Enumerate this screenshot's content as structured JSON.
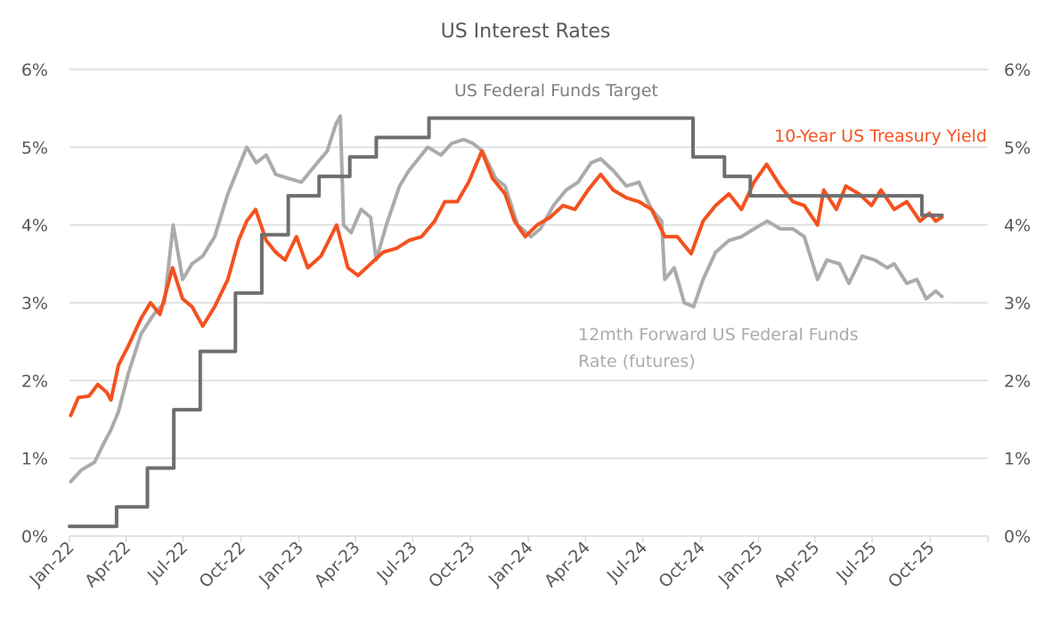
{
  "chart_data": {
    "type": "line",
    "title": "US Interest Rates",
    "xlim": [
      "2022-01-01",
      "2026-01-01"
    ],
    "ylim": [
      0,
      6
    ],
    "y_ticks": [
      "0%",
      "1%",
      "2%",
      "3%",
      "4%",
      "5%",
      "6%"
    ],
    "y_axes": "left-and-right",
    "grid": "horizontal",
    "x_tick_labels": [
      "Jan-22",
      "Apr-22",
      "Jul-22",
      "Oct-22",
      "Jan-23",
      "Apr-23",
      "Jul-23",
      "Oct-23",
      "Jan-24",
      "Apr-24",
      "Jul-24",
      "Oct-24",
      "Jan-25",
      "Apr-25",
      "Jul-25",
      "Oct-25"
    ],
    "x_tick_dates": [
      "2022-01-01",
      "2022-04-01",
      "2022-07-01",
      "2022-10-01",
      "2023-01-01",
      "2023-04-01",
      "2023-07-01",
      "2023-10-01",
      "2024-01-01",
      "2024-04-01",
      "2024-07-01",
      "2024-10-01",
      "2025-01-01",
      "2025-04-01",
      "2025-07-01",
      "2025-10-01"
    ],
    "series": [
      {
        "name": "12mth Forward US Federal Funds Rate (futures)",
        "color": "#ABABAB",
        "step": false,
        "x": [
          "2022-01-03",
          "2022-01-20",
          "2022-02-10",
          "2022-02-25",
          "2022-03-07",
          "2022-03-20",
          "2022-04-05",
          "2022-04-25",
          "2022-05-15",
          "2022-06-01",
          "2022-06-15",
          "2022-06-30",
          "2022-07-15",
          "2022-08-01",
          "2022-08-20",
          "2022-09-10",
          "2022-09-25",
          "2022-10-10",
          "2022-10-25",
          "2022-11-10",
          "2022-11-25",
          "2022-12-15",
          "2023-01-05",
          "2023-01-25",
          "2023-02-15",
          "2023-03-01",
          "2023-03-08",
          "2023-03-13",
          "2023-03-25",
          "2023-04-10",
          "2023-04-25",
          "2023-05-04",
          "2023-05-20",
          "2023-06-10",
          "2023-06-25",
          "2023-07-10",
          "2023-07-25",
          "2023-08-15",
          "2023-09-01",
          "2023-09-20",
          "2023-10-05",
          "2023-10-20",
          "2023-11-10",
          "2023-11-25",
          "2023-12-15",
          "2024-01-05",
          "2024-01-20",
          "2024-02-10",
          "2024-03-01",
          "2024-03-20",
          "2024-04-10",
          "2024-04-25",
          "2024-05-15",
          "2024-06-05",
          "2024-06-25",
          "2024-07-15",
          "2024-07-31",
          "2024-08-05",
          "2024-08-20",
          "2024-09-05",
          "2024-09-20",
          "2024-10-05",
          "2024-10-25",
          "2024-11-15",
          "2024-12-05",
          "2024-12-25",
          "2025-01-15",
          "2025-02-05",
          "2025-02-25",
          "2025-03-15",
          "2025-04-05",
          "2025-04-20",
          "2025-05-10",
          "2025-05-25",
          "2025-06-15",
          "2025-07-05",
          "2025-07-25",
          "2025-08-05",
          "2025-08-25",
          "2025-09-10",
          "2025-09-25",
          "2025-10-10",
          "2025-10-20"
        ],
        "values": [
          0.7,
          0.85,
          0.95,
          1.2,
          1.35,
          1.6,
          2.1,
          2.6,
          2.85,
          3.0,
          4.0,
          3.3,
          3.5,
          3.6,
          3.85,
          4.4,
          4.7,
          5.0,
          4.8,
          4.9,
          4.65,
          4.6,
          4.55,
          4.75,
          4.95,
          5.3,
          5.4,
          4.0,
          3.9,
          4.2,
          4.1,
          3.55,
          4.0,
          4.5,
          4.7,
          4.85,
          5.0,
          4.9,
          5.05,
          5.1,
          5.05,
          4.95,
          4.6,
          4.5,
          4.0,
          3.85,
          3.95,
          4.25,
          4.45,
          4.55,
          4.8,
          4.85,
          4.7,
          4.5,
          4.55,
          4.2,
          4.05,
          3.3,
          3.45,
          3.0,
          2.95,
          3.3,
          3.65,
          3.8,
          3.85,
          3.95,
          4.05,
          3.95,
          3.95,
          3.85,
          3.3,
          3.55,
          3.5,
          3.25,
          3.6,
          3.55,
          3.45,
          3.5,
          3.25,
          3.3,
          3.05,
          3.15,
          3.08
        ]
      },
      {
        "name": "10-Year US Treasury Yield",
        "color": "#F4511E",
        "step": false,
        "x": [
          "2022-01-03",
          "2022-01-15",
          "2022-02-01",
          "2022-02-15",
          "2022-03-01",
          "2022-03-08",
          "2022-03-20",
          "2022-04-05",
          "2022-04-25",
          "2022-05-10",
          "2022-05-25",
          "2022-06-14",
          "2022-06-30",
          "2022-07-15",
          "2022-08-01",
          "2022-08-20",
          "2022-09-10",
          "2022-09-27",
          "2022-10-10",
          "2022-10-24",
          "2022-11-10",
          "2022-11-25",
          "2022-12-10",
          "2022-12-28",
          "2023-01-15",
          "2023-02-05",
          "2023-03-02",
          "2023-03-20",
          "2023-04-05",
          "2023-04-25",
          "2023-05-15",
          "2023-06-05",
          "2023-06-25",
          "2023-07-15",
          "2023-08-05",
          "2023-08-21",
          "2023-09-10",
          "2023-09-28",
          "2023-10-19",
          "2023-11-05",
          "2023-11-25",
          "2023-12-10",
          "2023-12-27",
          "2024-01-15",
          "2024-02-05",
          "2024-02-25",
          "2024-03-15",
          "2024-04-05",
          "2024-04-25",
          "2024-05-15",
          "2024-06-05",
          "2024-06-25",
          "2024-07-15",
          "2024-08-05",
          "2024-08-25",
          "2024-09-16",
          "2024-10-05",
          "2024-10-25",
          "2024-11-15",
          "2024-12-05",
          "2024-12-25",
          "2025-01-14",
          "2025-02-05",
          "2025-02-25",
          "2025-03-15",
          "2025-04-05",
          "2025-04-15",
          "2025-05-05",
          "2025-05-20",
          "2025-06-10",
          "2025-06-30",
          "2025-07-15",
          "2025-08-05",
          "2025-08-25",
          "2025-09-15",
          "2025-09-30",
          "2025-10-10",
          "2025-10-20"
        ],
        "values": [
          1.55,
          1.78,
          1.8,
          1.95,
          1.85,
          1.75,
          2.2,
          2.45,
          2.8,
          3.0,
          2.85,
          3.45,
          3.05,
          2.95,
          2.7,
          2.95,
          3.3,
          3.8,
          4.05,
          4.2,
          3.8,
          3.65,
          3.55,
          3.85,
          3.45,
          3.6,
          4.0,
          3.45,
          3.35,
          3.5,
          3.65,
          3.7,
          3.8,
          3.85,
          4.05,
          4.3,
          4.3,
          4.55,
          4.95,
          4.6,
          4.4,
          4.05,
          3.85,
          4.0,
          4.1,
          4.25,
          4.2,
          4.45,
          4.65,
          4.45,
          4.35,
          4.3,
          4.2,
          3.85,
          3.85,
          3.63,
          4.05,
          4.25,
          4.4,
          4.2,
          4.55,
          4.78,
          4.5,
          4.3,
          4.25,
          4.0,
          4.45,
          4.2,
          4.5,
          4.4,
          4.25,
          4.45,
          4.2,
          4.3,
          4.05,
          4.15,
          4.05,
          4.1
        ]
      },
      {
        "name": "US Federal Funds Target",
        "color": "#6E6E6E",
        "step": true,
        "x": [
          "2022-01-01",
          "2022-03-17",
          "2022-05-05",
          "2022-06-16",
          "2022-07-28",
          "2022-09-22",
          "2022-11-03",
          "2022-12-15",
          "2023-02-02",
          "2023-03-23",
          "2023-05-04",
          "2023-07-27",
          "2024-09-19",
          "2024-11-08",
          "2024-12-19",
          "2025-09-18",
          "2025-10-20"
        ],
        "values": [
          0.125,
          0.375,
          0.875,
          1.625,
          2.375,
          3.125,
          3.875,
          4.375,
          4.625,
          4.875,
          5.125,
          5.375,
          4.875,
          4.625,
          4.375,
          4.125,
          4.125
        ]
      }
    ],
    "annotations": {
      "fed_target": "US Federal Funds Target",
      "treasury": "10-Year US Treasury Yield",
      "forward_line1": "12mth Forward US Federal Funds",
      "forward_line2": "Rate (futures)"
    }
  }
}
